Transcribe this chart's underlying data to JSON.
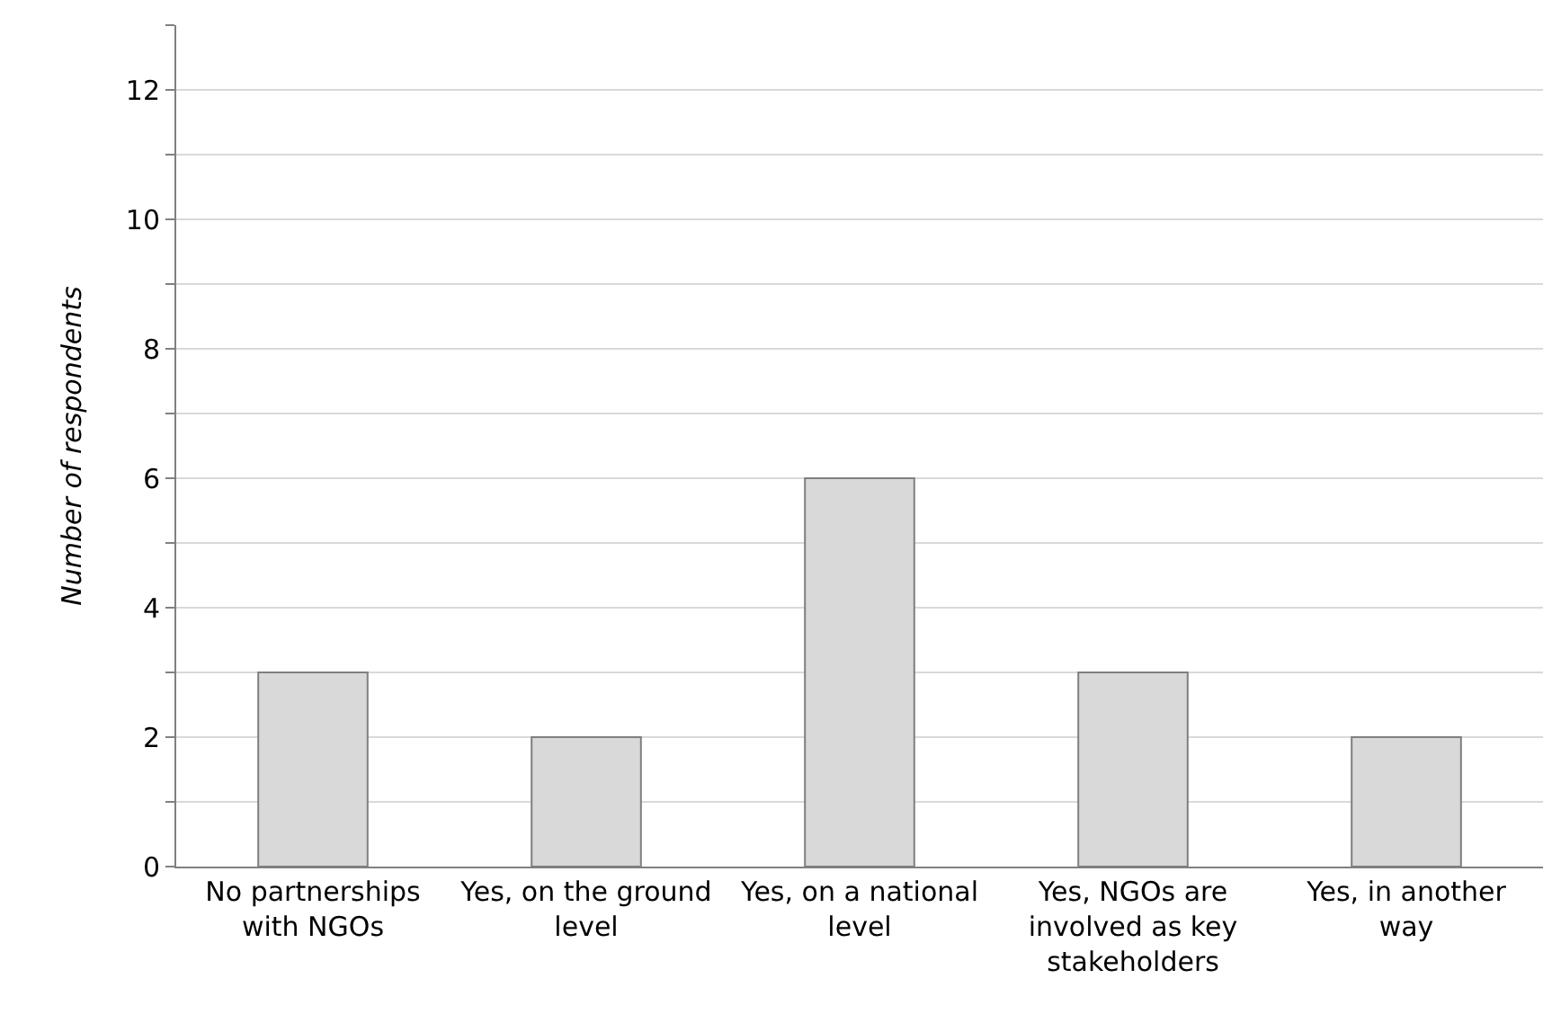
{
  "chart_data": {
    "type": "bar",
    "ylabel": "Number of respondents",
    "categories": [
      "No partnerships with NGOs",
      "Yes, on the ground level",
      "Yes, on a national level",
      "Yes, NGOs are involved as key stakeholders",
      "Yes, in another way"
    ],
    "values": [
      3,
      2,
      6,
      3,
      2
    ],
    "color": "#d9d9d9",
    "ylim": [
      0,
      13
    ],
    "yticks": [
      0,
      {
        "value": 1,
        "label": null
      },
      2,
      {
        "value": 3,
        "label": null
      },
      4,
      {
        "value": 5,
        "label": null
      },
      6,
      {
        "value": 7,
        "label": null
      },
      8,
      {
        "value": 9,
        "label": null
      },
      10,
      {
        "value": 11,
        "label": null
      },
      12,
      {
        "value": 13,
        "label": null
      }
    ],
    "grid": true,
    "legend": false
  }
}
